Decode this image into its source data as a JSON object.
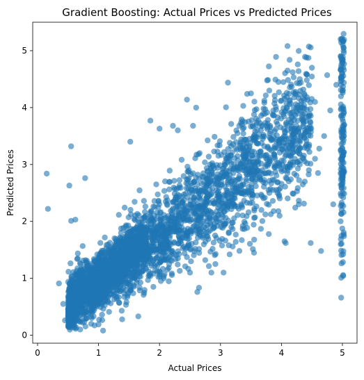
{
  "chart_data": {
    "type": "scatter",
    "title": "Gradient Boosting: Actual Prices vs Predicted Prices",
    "xlabel": "Actual Prices",
    "ylabel": "Predicted Prices",
    "xlim": [
      -0.08,
      5.24
    ],
    "ylim": [
      -0.14,
      5.5
    ],
    "xticks": [
      "0",
      "1",
      "2",
      "3",
      "4",
      "5"
    ],
    "yticks": [
      "0",
      "1",
      "2",
      "3",
      "4",
      "5"
    ],
    "grid": false,
    "marker_color": "#1f77b4",
    "marker_alpha": 0.6,
    "series": [
      {
        "points": [
          [
            0.15,
            2.84
          ],
          [
            0.17,
            2.22
          ],
          [
            0.55,
            3.32
          ],
          [
            0.52,
            2.63
          ],
          [
            0.78,
            2.76
          ],
          [
            0.55,
            2.01
          ],
          [
            0.62,
            2.03
          ],
          [
            0.35,
            0.91
          ],
          [
            0.42,
            0.55
          ],
          [
            0.45,
            0.26
          ],
          [
            0.5,
            0.35
          ],
          [
            0.58,
            0.4
          ],
          [
            0.7,
            0.1
          ],
          [
            1.0,
            0.19
          ],
          [
            1.38,
            0.43
          ],
          [
            1.9,
            0.85
          ],
          [
            2.5,
            1.1
          ],
          [
            2.62,
            0.76
          ],
          [
            2.75,
            1.32
          ],
          [
            2.85,
            1.1
          ],
          [
            3.05,
            1.1
          ],
          [
            3.15,
            1.42
          ],
          [
            3.25,
            1.64
          ],
          [
            3.35,
            1.67
          ],
          [
            3.55,
            1.45
          ],
          [
            3.8,
            2.5
          ],
          [
            4.05,
            1.65
          ],
          [
            4.07,
            1.62
          ],
          [
            4.48,
            1.62
          ],
          [
            4.65,
            1.48
          ],
          [
            4.98,
            0.66
          ],
          [
            4.98,
            1.01
          ],
          [
            1.52,
            3.4
          ],
          [
            1.85,
            3.77
          ],
          [
            2.0,
            3.63
          ],
          [
            2.22,
            3.68
          ],
          [
            2.45,
            4.14
          ],
          [
            2.3,
            3.6
          ],
          [
            2.55,
            3.68
          ],
          [
            2.6,
            4.0
          ],
          [
            3.5,
            4.25
          ],
          [
            3.8,
            4.3
          ],
          [
            4.1,
            4.65
          ],
          [
            4.5,
            4.7
          ],
          [
            4.9,
            4.4
          ],
          [
            4.75,
            4.57
          ],
          [
            4.3,
            4.5
          ],
          [
            3.95,
            4.45
          ],
          [
            4.38,
            4.22
          ],
          [
            4.55,
            4.1
          ],
          [
            4.8,
            3.95
          ],
          [
            4.7,
            3.5
          ],
          [
            4.62,
            3.28
          ],
          [
            4.55,
            3.1
          ],
          [
            4.45,
            2.9
          ],
          [
            4.35,
            2.65
          ],
          [
            4.6,
            2.85
          ],
          [
            4.85,
            2.3
          ],
          [
            4.3,
            3.0
          ],
          [
            4.2,
            3.5
          ]
        ]
      }
    ]
  }
}
